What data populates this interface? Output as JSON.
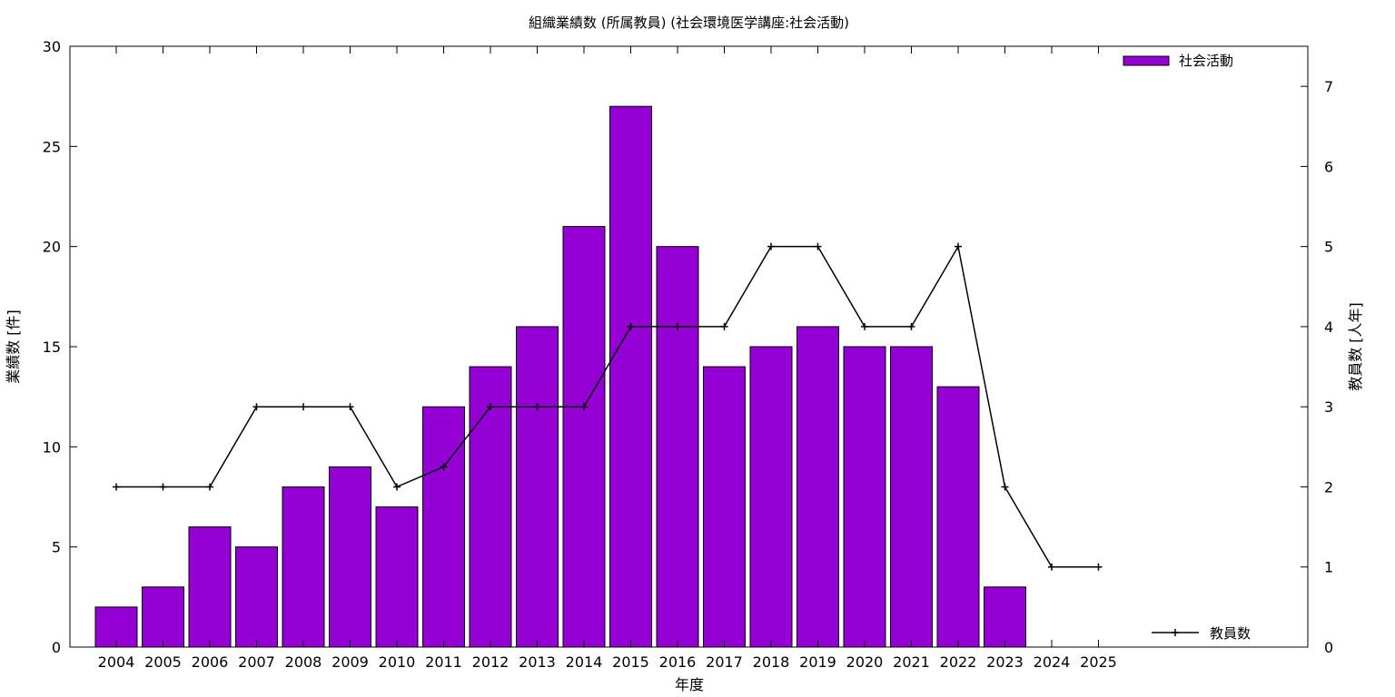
{
  "chart_data": {
    "type": "bar",
    "title": "組織業績数 (所属教員) (社会環境医学講座:社会活動)",
    "xlabel": "年度",
    "ylabel": "業績数 [件]",
    "y2label": "教員数 [人年]",
    "categories": [
      "2004",
      "2005",
      "2006",
      "2007",
      "2008",
      "2009",
      "2010",
      "2011",
      "2012",
      "2013",
      "2014",
      "2015",
      "2016",
      "2017",
      "2018",
      "2019",
      "2020",
      "2021",
      "2022",
      "2023",
      "2024",
      "2025"
    ],
    "series": [
      {
        "name": "社会活動",
        "type": "bar",
        "axis": "left",
        "color": "#9400d3",
        "values": [
          2,
          3,
          6,
          5,
          8,
          9,
          7,
          12,
          14,
          16,
          21,
          27,
          20,
          14,
          15,
          16,
          15,
          15,
          13,
          3,
          null,
          null
        ]
      },
      {
        "name": "教員数",
        "type": "line",
        "axis": "right",
        "color": "#000000",
        "values": [
          2,
          2,
          2,
          3,
          3,
          3,
          2,
          2.25,
          3,
          3,
          3,
          4,
          4,
          4,
          5,
          5,
          4,
          4,
          5,
          2,
          1,
          1
        ]
      }
    ],
    "ylim": [
      0,
      30
    ],
    "y2lim": [
      0,
      7.5
    ],
    "yticks": [
      0,
      5,
      10,
      15,
      20,
      25,
      30
    ],
    "y2ticks": [
      0,
      1,
      2,
      3,
      4,
      5,
      6,
      7
    ],
    "grid": false,
    "legend_position": "top-right / bottom-right"
  }
}
